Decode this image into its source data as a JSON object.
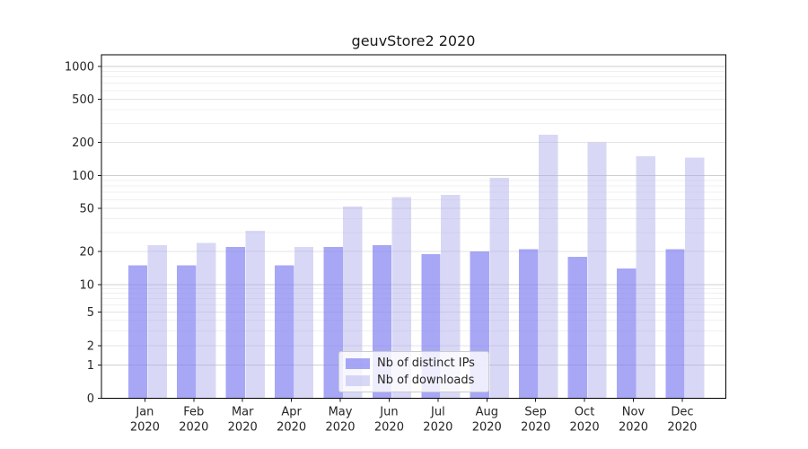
{
  "chart_data": {
    "type": "bar",
    "title": "geuvStore2 2020",
    "categories": [
      "Jan",
      "Feb",
      "Mar",
      "Apr",
      "May",
      "Jun",
      "Jul",
      "Aug",
      "Sep",
      "Oct",
      "Nov",
      "Dec"
    ],
    "xtick_second_line": "2020",
    "series": [
      {
        "name": "Nb of distinct IPs",
        "color": "#a9a9f6",
        "fill": "rgba(130,130,242,0.70)",
        "values": [
          15,
          15,
          22,
          15,
          22,
          23,
          19,
          20,
          21,
          18,
          14,
          21
        ]
      },
      {
        "name": "Nb of downloads",
        "color": "#d8d8f6",
        "fill": "rgba(168,168,236,0.45)",
        "values": [
          23,
          24,
          31,
          22,
          52,
          63,
          66,
          95,
          235,
          200,
          150,
          145
        ]
      }
    ],
    "yscale": "symlog",
    "yticks": [
      0,
      1,
      2,
      5,
      10,
      20,
      50,
      100,
      200,
      500,
      1000
    ],
    "ylim": [
      0,
      1000
    ],
    "xlabel": "",
    "ylabel": "",
    "grid": true,
    "legend_position": "lower center"
  },
  "colors": {
    "grid_decade": "#cfcfcf",
    "grid_labeled": "#e3e3e3",
    "grid_minor": "#f0f0f0",
    "spine": "#000000",
    "text": "#262626",
    "background": "#ffffff"
  }
}
